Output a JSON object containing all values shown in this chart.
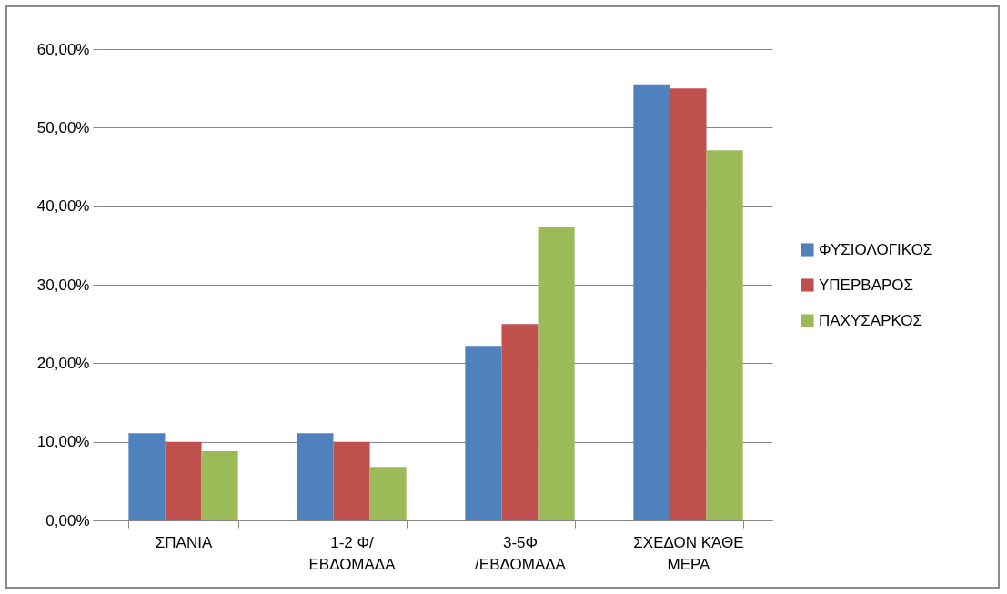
{
  "chart_data": {
    "type": "bar",
    "categories": [
      "ΣΠΑΝΙΑ",
      "1-2 Φ/\nΕΒΔΟΜΑΔΑ",
      "3-5Φ\n/ΕΒΔΟΜΑΔΑ",
      "ΣΧΕΔΟΝ ΚΆΘΕ\nΜΕΡΑ"
    ],
    "series": [
      {
        "name": "ΦΥΣΙΟΛΟΓΙΚΟΣ",
        "color": "#4f81bd",
        "values": [
          11.1,
          11.1,
          22.2,
          55.5
        ]
      },
      {
        "name": "ΥΠΕΡΒΑΡΟΣ",
        "color": "#c0504d",
        "values": [
          10.0,
          10.0,
          25.0,
          55.0
        ]
      },
      {
        "name": "ΠΑΧΥΣΑΡΚΟΣ",
        "color": "#9bbb59",
        "values": [
          8.8,
          6.8,
          37.4,
          47.1
        ]
      }
    ],
    "ylim": [
      0,
      60
    ],
    "yticks": [
      {
        "value": 0,
        "label": "0,00%"
      },
      {
        "value": 10,
        "label": "10,00%"
      },
      {
        "value": 20,
        "label": "20,00%"
      },
      {
        "value": 30,
        "label": "30,00%"
      },
      {
        "value": 40,
        "label": "40,00%"
      },
      {
        "value": 50,
        "label": "50,00%"
      },
      {
        "value": 60,
        "label": "60,00%"
      }
    ],
    "grid": "y",
    "legend": "right"
  }
}
